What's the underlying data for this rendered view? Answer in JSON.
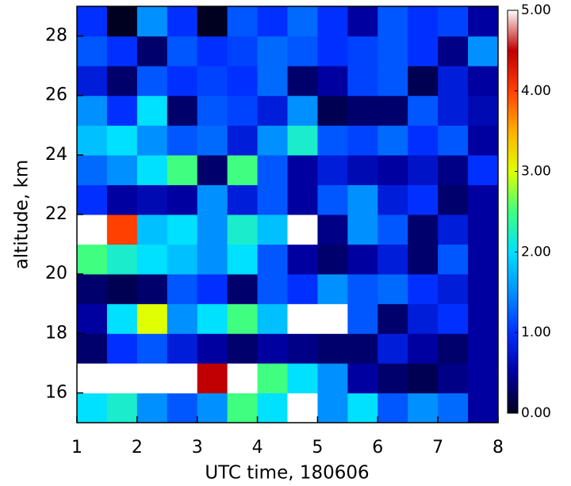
{
  "chart_data": {
    "type": "heatmap",
    "xlabel": "UTC time, 180606",
    "ylabel": "altitude, km",
    "xbins": [
      1,
      1.5,
      2,
      2.5,
      3,
      3.5,
      4,
      4.5,
      5,
      5.5,
      6,
      6.5,
      7,
      7.5,
      8
    ],
    "ybins": [
      15,
      16,
      17,
      18,
      19,
      20,
      21,
      22,
      23,
      24,
      25,
      26,
      27,
      28,
      29
    ],
    "values": [
      [
        2.0,
        2.2,
        1.5,
        1.2,
        1.5,
        2.5,
        2.0,
        5,
        1.5,
        2.0,
        1.2,
        1.5,
        1.3,
        0.5
      ],
      [
        5,
        5,
        5,
        5,
        4.5,
        5,
        2.5,
        2.0,
        1.5,
        0.5,
        0.3,
        0.2,
        0.4,
        0.5
      ],
      [
        0.3,
        1.0,
        1.2,
        0.8,
        0.5,
        0.3,
        0.5,
        0.4,
        0.3,
        0.3,
        0.8,
        0.5,
        0.3,
        0.5
      ],
      [
        0.5,
        2.0,
        3.0,
        1.5,
        2.0,
        2.5,
        1.8,
        5,
        5,
        1.2,
        0.3,
        0.8,
        1.0,
        0.5
      ],
      [
        0.3,
        0.2,
        0.3,
        1.2,
        1.0,
        0.3,
        1.2,
        1.0,
        1.5,
        1.2,
        1.3,
        1.0,
        0.8,
        0.5
      ],
      [
        2.5,
        2.2,
        2.0,
        1.8,
        1.5,
        2.0,
        1.2,
        0.5,
        0.3,
        0.5,
        0.8,
        0.3,
        1.2,
        0.5
      ],
      [
        5,
        4,
        1.8,
        2.0,
        1.5,
        2.2,
        1.8,
        5,
        0.4,
        1.5,
        1.2,
        0.3,
        0.8,
        0.5
      ],
      [
        1.0,
        0.5,
        0.6,
        0.5,
        1.5,
        0.8,
        1.2,
        0.5,
        1.2,
        1.5,
        0.8,
        1.0,
        0.3,
        0.5
      ],
      [
        1.3,
        1.5,
        2.0,
        2.5,
        0.3,
        2.5,
        1.2,
        0.5,
        0.8,
        0.6,
        0.5,
        0.7,
        0.4,
        1.0
      ],
      [
        1.8,
        2.0,
        1.5,
        1.2,
        1.3,
        0.8,
        1.5,
        2.2,
        1.2,
        1.1,
        1.3,
        1.0,
        1.2,
        0.5
      ],
      [
        1.5,
        1.0,
        2.0,
        0.3,
        1.2,
        1.1,
        0.8,
        1.5,
        0.2,
        0.3,
        0.3,
        1.2,
        0.8,
        0.6
      ],
      [
        0.8,
        0.3,
        1.2,
        1.0,
        1.1,
        1.0,
        1.3,
        0.3,
        0.5,
        1.1,
        1.2,
        0.2,
        0.8,
        0.5
      ],
      [
        1.2,
        1.0,
        0.3,
        1.2,
        1.0,
        1.1,
        1.3,
        1.2,
        1.0,
        1.1,
        1.2,
        1.0,
        0.4,
        1.5
      ],
      [
        1.0,
        0,
        1.5,
        1.0,
        0,
        1.2,
        1.0,
        1.3,
        1.0,
        0.5,
        1.2,
        1.0,
        1.1,
        0.5
      ]
    ],
    "xlim": [
      1,
      8
    ],
    "xticks": [
      1,
      2,
      3,
      4,
      5,
      6,
      7,
      8
    ],
    "ylim": [
      15,
      29
    ],
    "yticks": [
      16,
      18,
      20,
      22,
      24,
      26,
      28
    ],
    "clim": [
      0,
      5
    ],
    "cticks": [
      {
        "value": 0,
        "label": "0.00"
      },
      {
        "value": 1,
        "label": "1.00"
      },
      {
        "value": 2,
        "label": "2.00"
      },
      {
        "value": 3,
        "label": "3.00"
      },
      {
        "value": 4,
        "label": "4.00"
      },
      {
        "value": 5,
        "label": "5.00"
      }
    ],
    "colormap": [
      "#000020",
      "#0000a0",
      "#0030ff",
      "#0090ff",
      "#00e0ff",
      "#40ff80",
      "#e0ff00",
      "#ffb000",
      "#ff4000",
      "#c00000",
      "#ffffff"
    ]
  }
}
